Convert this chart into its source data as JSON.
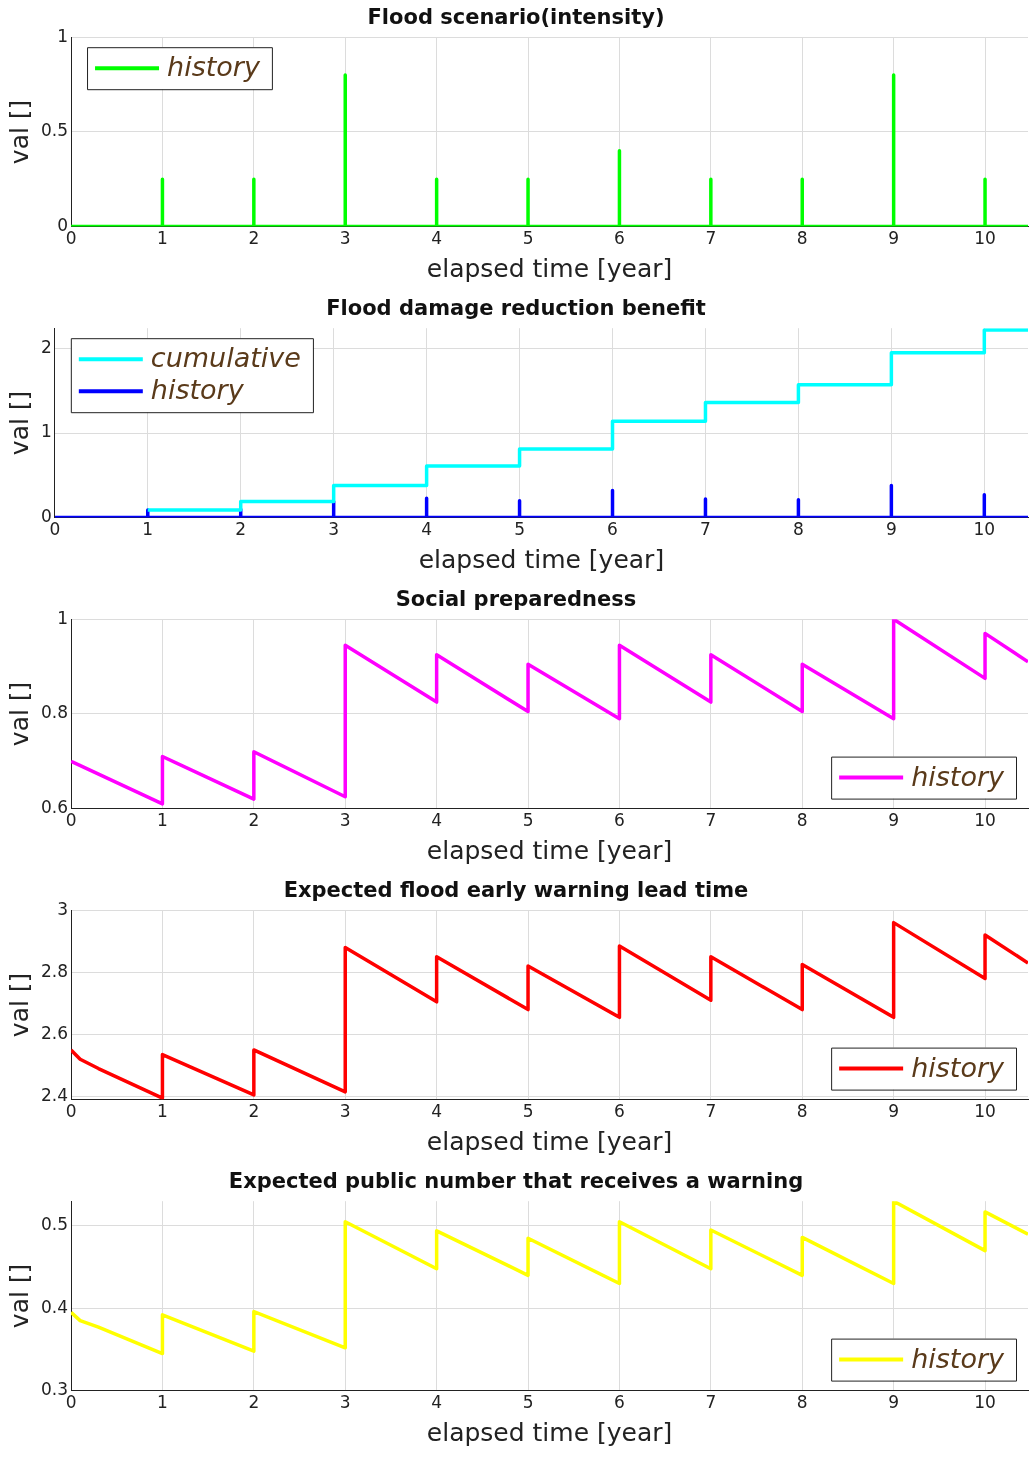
{
  "chart_data": [
    {
      "type": "line",
      "title": "Flood scenario(intensity)",
      "xlabel": "elapsed time [year]",
      "ylabel": "val []",
      "xlim": [
        0,
        10.47
      ],
      "xticks": [
        0,
        1,
        2,
        3,
        4,
        5,
        6,
        7,
        8,
        9,
        10
      ],
      "ylim": [
        0,
        1
      ],
      "yticks": [
        0,
        0.5,
        1
      ],
      "grid": true,
      "legend": "top left",
      "series": [
        {
          "name": "history",
          "color": "#00ff00",
          "x": [
            0,
            1,
            1,
            1,
            2,
            2,
            2,
            3,
            3,
            3,
            4,
            4,
            4,
            5,
            5,
            5,
            6,
            6,
            6,
            7,
            7,
            7,
            8,
            8,
            8,
            9,
            9,
            9,
            10,
            10,
            10,
            10.47
          ],
          "values": [
            0,
            0,
            0.25,
            0,
            0,
            0.25,
            0,
            0,
            0.8,
            0,
            0,
            0.25,
            0,
            0,
            0.25,
            0,
            0,
            0.4,
            0,
            0,
            0.25,
            0,
            0,
            0.25,
            0,
            0,
            0.8,
            0,
            0,
            0.25,
            0,
            0
          ]
        }
      ]
    },
    {
      "type": "line",
      "title": "Flood damage reduction benefit",
      "xlabel": "elapsed time [year]",
      "ylabel": "val []",
      "xlim": [
        0,
        10.47
      ],
      "xticks": [
        0,
        1,
        2,
        3,
        4,
        5,
        6,
        7,
        8,
        9,
        10
      ],
      "ylim": [
        0,
        2.24
      ],
      "yticks": [
        0,
        1,
        2
      ],
      "grid": true,
      "legend": "top left",
      "series": [
        {
          "name": "cumulative",
          "color": "#00ffff",
          "x": [
            1,
            2,
            2,
            3,
            3,
            4,
            4,
            5,
            5,
            6,
            6,
            7,
            7,
            8,
            8,
            9,
            9,
            10,
            10,
            10.47
          ],
          "values": [
            0.09,
            0.09,
            0.19,
            0.19,
            0.38,
            0.38,
            0.61,
            0.61,
            0.81,
            0.81,
            1.14,
            1.14,
            1.36,
            1.36,
            1.57,
            1.57,
            1.95,
            1.95,
            2.22,
            2.22
          ]
        },
        {
          "name": "history",
          "color": "#0000ff",
          "x": [
            0,
            1,
            1,
            1,
            2,
            2,
            2,
            3,
            3,
            3,
            4,
            4,
            4,
            5,
            5,
            5,
            6,
            6,
            6,
            7,
            7,
            7,
            8,
            8,
            8,
            9,
            9,
            9,
            10,
            10,
            10,
            10.47
          ],
          "values": [
            0,
            0,
            0.09,
            0,
            0,
            0.1,
            0,
            0,
            0.19,
            0,
            0,
            0.23,
            0,
            0,
            0.2,
            0,
            0,
            0.32,
            0,
            0,
            0.22,
            0,
            0,
            0.21,
            0,
            0,
            0.38,
            0,
            0,
            0.27,
            0,
            0
          ]
        }
      ]
    },
    {
      "type": "line",
      "title": "Social preparedness",
      "xlabel": "elapsed time [year]",
      "ylabel": "val []",
      "xlim": [
        0,
        10.47
      ],
      "xticks": [
        0,
        1,
        2,
        3,
        4,
        5,
        6,
        7,
        8,
        9,
        10
      ],
      "ylim": [
        0.6,
        1
      ],
      "yticks": [
        0.6,
        0.8,
        1
      ],
      "grid": true,
      "legend": "bottom right",
      "series": [
        {
          "name": "history",
          "color": "#ff00ff",
          "x": [
            0,
            1,
            1,
            2,
            2,
            3,
            3,
            4,
            4,
            5,
            5,
            6,
            6,
            7,
            7,
            8,
            8,
            9,
            9,
            10,
            10,
            10.47
          ],
          "values": [
            0.7,
            0.61,
            0.71,
            0.62,
            0.72,
            0.625,
            0.945,
            0.825,
            0.925,
            0.805,
            0.905,
            0.79,
            0.945,
            0.825,
            0.925,
            0.805,
            0.905,
            0.79,
            1,
            0.875,
            0.97,
            0.91
          ]
        }
      ]
    },
    {
      "type": "line",
      "title": "Expected flood early warning lead time",
      "xlabel": "elapsed time [year]",
      "ylabel": "val []",
      "xlim": [
        0,
        10.47
      ],
      "xticks": [
        0,
        1,
        2,
        3,
        4,
        5,
        6,
        7,
        8,
        9,
        10
      ],
      "ylim": [
        2.39,
        3
      ],
      "yticks": [
        2.4,
        2.6,
        2.8,
        3
      ],
      "grid": true,
      "legend": "bottom right",
      "series": [
        {
          "name": "history",
          "color": "#ff0000",
          "x": [
            0,
            0.1,
            0.3,
            1,
            1,
            2,
            2,
            3,
            3,
            4,
            4,
            5,
            5,
            6,
            6,
            7,
            7,
            8,
            8,
            9,
            9,
            10,
            10,
            10.47
          ],
          "values": [
            2.55,
            2.52,
            2.49,
            2.395,
            2.535,
            2.405,
            2.55,
            2.415,
            2.88,
            2.705,
            2.85,
            2.68,
            2.82,
            2.655,
            2.885,
            2.71,
            2.85,
            2.68,
            2.825,
            2.655,
            2.96,
            2.78,
            2.92,
            2.83
          ]
        }
      ]
    },
    {
      "type": "line",
      "title": "Expected public number that receives a warning",
      "xlabel": "elapsed time [year]",
      "ylabel": "val []",
      "xlim": [
        0,
        10.47
      ],
      "xticks": [
        0,
        1,
        2,
        3,
        4,
        5,
        6,
        7,
        8,
        9,
        10
      ],
      "ylim": [
        0.3,
        0.53
      ],
      "yticks": [
        0.3,
        0.4,
        0.5
      ],
      "grid": true,
      "legend": "bottom right",
      "series": [
        {
          "name": "history",
          "color": "#ffff00",
          "x": [
            0,
            0.1,
            0.3,
            1,
            1,
            2,
            2,
            3,
            3,
            4,
            4,
            5,
            5,
            6,
            6,
            7,
            7,
            8,
            8,
            9,
            9,
            10,
            10,
            10.47
          ],
          "values": [
            0.395,
            0.385,
            0.377,
            0.345,
            0.392,
            0.348,
            0.396,
            0.352,
            0.505,
            0.448,
            0.494,
            0.44,
            0.485,
            0.43,
            0.505,
            0.448,
            0.495,
            0.44,
            0.486,
            0.43,
            0.53,
            0.47,
            0.517,
            0.49
          ]
        }
      ]
    }
  ]
}
